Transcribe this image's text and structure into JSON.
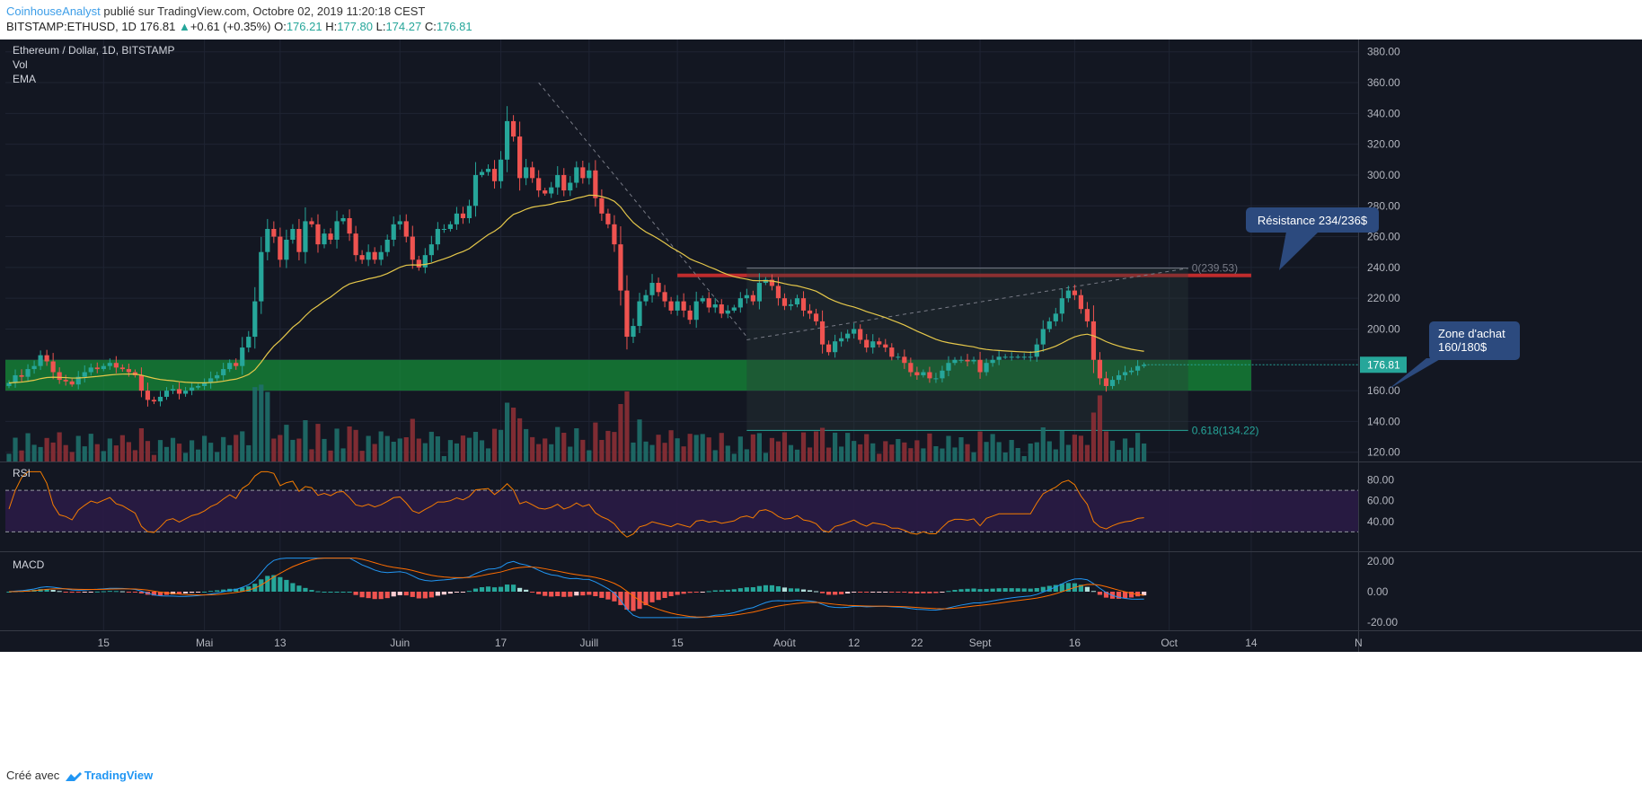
{
  "header": {
    "author": "CoinhouseAnalyst",
    "published": "publié sur TradingView.com, Octobre 02, 2019 11:20:18 CEST",
    "symbol": "BITSTAMP:ETHUSD, 1D",
    "last": "176.81",
    "change_arrow": "▲",
    "change": "+0.61 (+0.35%)",
    "o_label": "O:",
    "o": "176.21",
    "h_label": "H:",
    "h": "177.80",
    "l_label": "L:",
    "l": "174.27",
    "c_label": "C:",
    "c": "176.81"
  },
  "footer": {
    "created": "Créé avec",
    "brand": "TradingView"
  },
  "chart_data": {
    "type": "candlestick",
    "title": "Ethereum / Dollar, 1D, BITSTAMP",
    "legend": [
      "Vol",
      "EMA"
    ],
    "x_labels": [
      {
        "label": "15",
        "day": 15
      },
      {
        "label": "Mai",
        "day": 31
      },
      {
        "label": "13",
        "day": 43
      },
      {
        "label": "Juin",
        "day": 62
      },
      {
        "label": "17",
        "day": 78
      },
      {
        "label": "Juill",
        "day": 92
      },
      {
        "label": "15",
        "day": 106
      },
      {
        "label": "Août",
        "day": 123
      },
      {
        "label": "12",
        "day": 134
      },
      {
        "label": "22",
        "day": 144
      },
      {
        "label": "Sept",
        "day": 154
      },
      {
        "label": "16",
        "day": 169
      },
      {
        "label": "Oct",
        "day": 184
      },
      {
        "label": "14",
        "day": 197
      },
      {
        "label": "N",
        "day": 214
      }
    ],
    "price_axis": {
      "min": 114,
      "max": 388,
      "ticks": [
        120,
        140,
        160,
        180,
        200,
        220,
        240,
        260,
        280,
        300,
        320,
        340,
        360,
        380
      ],
      "tick_format": "0.00"
    },
    "last_price": {
      "value": 176.81,
      "label": "176.81"
    },
    "closes": [
      165,
      170,
      169,
      174,
      176,
      183,
      179,
      172,
      167,
      166,
      164,
      169,
      172,
      175,
      174,
      176,
      178,
      175,
      174,
      172,
      170,
      160,
      154,
      153,
      156,
      160,
      161,
      158,
      160,
      162,
      163,
      165,
      168,
      170,
      174,
      178,
      176,
      188,
      195,
      218,
      250,
      265,
      260,
      245,
      258,
      265,
      250,
      270,
      268,
      255,
      262,
      258,
      270,
      272,
      262,
      248,
      245,
      250,
      245,
      250,
      258,
      268,
      270,
      260,
      245,
      240,
      248,
      255,
      265,
      265,
      268,
      275,
      272,
      280,
      300,
      302,
      304,
      296,
      310,
      335,
      325,
      298,
      305,
      298,
      290,
      288,
      292,
      300,
      290,
      295,
      305,
      298,
      303,
      285,
      275,
      268,
      255,
      225,
      195,
      202,
      218,
      222,
      230,
      224,
      218,
      212,
      218,
      212,
      206,
      218,
      220,
      214,
      216,
      210,
      212,
      214,
      220,
      222,
      218,
      230,
      232,
      228,
      220,
      215,
      216,
      220,
      212,
      210,
      205,
      190,
      185,
      192,
      194,
      197,
      200,
      193,
      188,
      192,
      190,
      188,
      182,
      182,
      178,
      172,
      170,
      172,
      168,
      168,
      173,
      178,
      180,
      180,
      179,
      180,
      172,
      178,
      180,
      182,
      182,
      182,
      182,
      182,
      182,
      190,
      200,
      205,
      210,
      220,
      225,
      222,
      213,
      205,
      180,
      168,
      163,
      167,
      170,
      172,
      173,
      176,
      176.8
    ],
    "ema": {
      "name": "EMA"
    },
    "zones": [
      {
        "name": "Zone d'achat",
        "low": 160,
        "high": 180,
        "from_day": 0,
        "to_day": 197
      },
      {
        "name": "Résistance",
        "low": 234,
        "high": 236,
        "from_day": 106,
        "to_day": 197
      }
    ],
    "fib": [
      {
        "label": "0(239.53)",
        "value": 239.53
      },
      {
        "label": "0.618(134.22)",
        "value": 134.22
      }
    ],
    "annotations": [
      {
        "text": "Résistance 234/236$"
      },
      {
        "text": "Zone d'achat\n160/180$"
      }
    ],
    "rsi": {
      "name": "RSI",
      "ticks": [
        80,
        60,
        40
      ],
      "upper": 70,
      "lower": 30,
      "tick_format": "0.00"
    },
    "macd": {
      "name": "MACD",
      "ticks": [
        20,
        0,
        -20
      ],
      "tick_format": "0.00"
    }
  },
  "colors": {
    "bg": "#131722",
    "up": "#26a69a",
    "down": "#ef5350",
    "ema": "#e6c84a",
    "zone": "#169c3c",
    "resist": "#d32f2f",
    "rsi": "#f57c00",
    "rsi_band": "#2a1b45",
    "macd": "#2196f3",
    "signal": "#ff6d00",
    "accent": "#2196f3",
    "label_box": "#2c4a7e"
  }
}
